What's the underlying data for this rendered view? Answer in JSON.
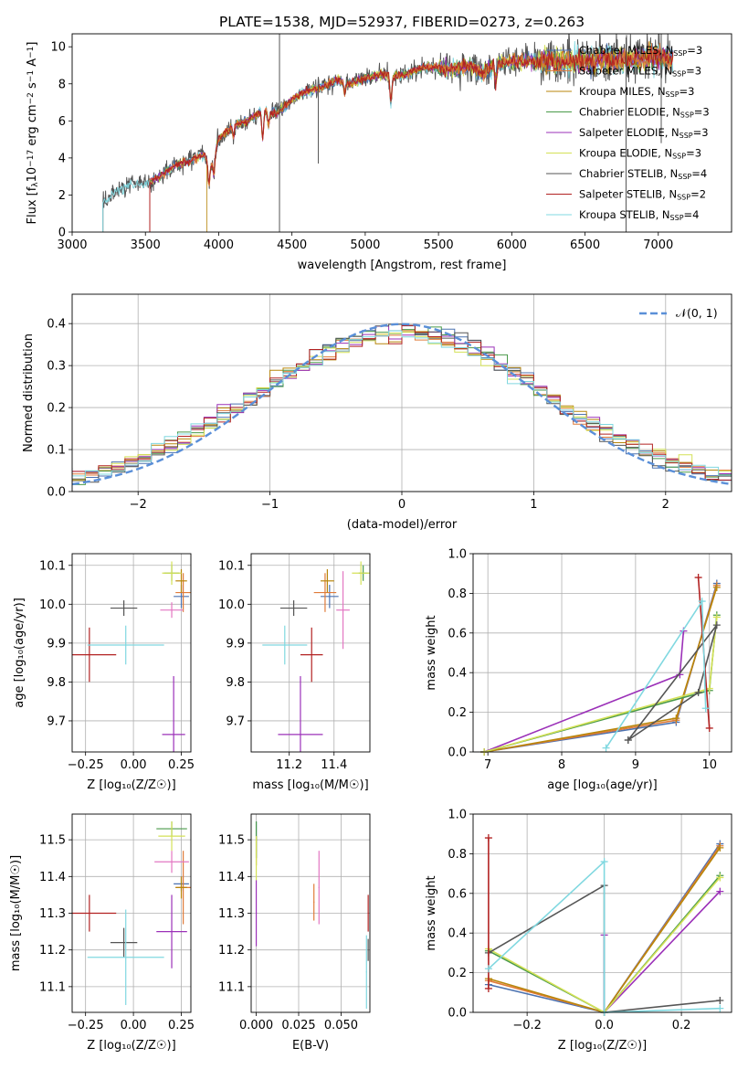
{
  "figure": {
    "title": "PLATE=1538, MJD=52937, FIBERID=0273, z=0.263"
  },
  "colors": {
    "chabrier_miles": "#4c72b0",
    "salpeter_miles": "#e07b39",
    "kroupa_miles": "#b8860b",
    "chabrier_elodie": "#4a9a4a",
    "salpeter_elodie": "#9b30b8",
    "kroupa_elodie": "#d4e157",
    "chabrier_stelib": "#555555",
    "salpeter_stelib": "#b22222",
    "kroupa_stelib": "#80d8e0",
    "normal_curve": "#5a8fd8",
    "grid": "#b0b0b0"
  },
  "chart_data": [
    {
      "id": "spectrum",
      "type": "line",
      "title": "PLATE=1538, MJD=52937, FIBERID=0273, z=0.263",
      "xlabel": "wavelength [Angstrom, rest frame]",
      "ylabel": "Flux [f$_\\lambda$10$^{-17}$ erg cm$^{-2}$ s$^{-1}$ A$^{-1}$]",
      "ylabel_parts": [
        "Flux [f",
        "λ",
        "10",
        "−17",
        " erg cm",
        "−2",
        " s",
        "−1",
        " A",
        "−1",
        "]"
      ],
      "xlim": [
        3000,
        7500
      ],
      "ylim": [
        0,
        10.7
      ],
      "xticks": [
        3000,
        3500,
        4000,
        4500,
        5000,
        5500,
        6000,
        6500,
        7000
      ],
      "yticks": [
        0,
        2,
        4,
        6,
        8,
        10
      ],
      "grid": false,
      "legend_position": "top-right",
      "legend": [
        {
          "name": "Chabrier MILES, N",
          "sub": "SSP",
          "tail": "=3"
        },
        {
          "name": "Salpeter MILES, N",
          "sub": "SSP",
          "tail": "=3"
        },
        {
          "name": "Kroupa MILES, N",
          "sub": "SSP",
          "tail": "=3"
        },
        {
          "name": "Chabrier ELODIE, N",
          "sub": "SSP",
          "tail": "=3"
        },
        {
          "name": "Salpeter ELODIE, N",
          "sub": "SSP",
          "tail": "=3"
        },
        {
          "name": "Kroupa ELODIE, N",
          "sub": "SSP",
          "tail": "=3"
        },
        {
          "name": "Chabrier STELIB, N",
          "sub": "SSP",
          "tail": "=4"
        },
        {
          "name": "Salpeter STELIB, N",
          "sub": "SSP",
          "tail": "=2"
        },
        {
          "name": "Kroupa STELIB, N",
          "sub": "SSP",
          "tail": "=4"
        }
      ],
      "continuum": {
        "x": [
          3210,
          3300,
          3400,
          3500,
          3600,
          3700,
          3800,
          3900,
          3950,
          4000,
          4100,
          4200,
          4300,
          4400,
          4500,
          4600,
          4700,
          4800,
          4900,
          5000,
          5100,
          5200,
          5300,
          5400,
          5500,
          5600,
          5700,
          5800,
          5900,
          6000,
          6200,
          6400,
          6600,
          6800,
          7000,
          7100
        ],
        "y": [
          1.6,
          2.2,
          2.6,
          2.6,
          3.0,
          3.6,
          3.8,
          4.2,
          3.6,
          5.0,
          5.8,
          6.0,
          6.6,
          6.4,
          7.2,
          7.6,
          7.8,
          8.2,
          8.0,
          8.3,
          8.5,
          8.4,
          8.6,
          8.9,
          8.9,
          8.8,
          9.0,
          8.6,
          9.1,
          9.2,
          9.2,
          9.2,
          9.3,
          9.3,
          9.5,
          9.3
        ]
      },
      "dips": [
        {
          "x": 3933,
          "depth": 1.2
        },
        {
          "x": 3968,
          "depth": 1.0
        },
        {
          "x": 4101,
          "depth": 0.7
        },
        {
          "x": 4300,
          "depth": 1.5
        },
        {
          "x": 4340,
          "depth": 0.8
        },
        {
          "x": 4861,
          "depth": 0.6
        },
        {
          "x": 5175,
          "depth": 1.4
        },
        {
          "x": 5890,
          "depth": 1.0
        },
        {
          "x": 6563,
          "depth": 0.4
        }
      ],
      "data_start": {
        "stelib": 3210,
        "miles": 3530,
        "kroupa_miles": 3920
      },
      "notes_spikes": [
        {
          "x": 4415,
          "y0": 0,
          "y1": 11.5
        },
        {
          "x": 6780,
          "y0": 0,
          "y1": 10.5
        },
        {
          "x": 4680,
          "y0": 3.7,
          "y1": 8.0
        },
        {
          "x": 7020,
          "y0": 4.8,
          "y1": 10.7
        }
      ]
    },
    {
      "id": "residuals",
      "type": "histogram",
      "xlabel": "(data-model)/error",
      "ylabel": "Normed distribution",
      "xlim": [
        -2.5,
        2.5
      ],
      "ylim": [
        0,
        0.47
      ],
      "xticks": [
        -2,
        -1,
        0,
        1,
        2
      ],
      "yticks": [
        0.0,
        0.1,
        0.2,
        0.3,
        0.4
      ],
      "grid": true,
      "bin_width": 0.1,
      "legend_position": "top-right",
      "legend": [
        {
          "name": "𝒩(0, 1)"
        }
      ],
      "normal_curve": {
        "mean": 0,
        "sigma": 1,
        "style": "dashed"
      }
    },
    {
      "id": "age_vs_Z",
      "type": "errorbar",
      "xlabel": "Z [log₁₀(Z/Z☉)]",
      "ylabel": "age  [log₁₀(age/yr)]",
      "xlim": [
        -0.32,
        0.3
      ],
      "ylim": [
        9.62,
        10.13
      ],
      "xticks": [
        -0.25,
        0.0,
        0.25
      ],
      "xtick_labels": [
        "−0.25",
        "0.00",
        "0.25"
      ],
      "yticks": [
        9.7,
        9.8,
        9.9,
        10.0,
        10.1
      ],
      "grid": true,
      "points": [
        {
          "model": "chabrier_miles",
          "x": 0.25,
          "y": 10.02,
          "xerr": 0.04,
          "yerr": 0.03
        },
        {
          "model": "salpeter_miles",
          "x": 0.26,
          "y": 10.03,
          "xerr": 0.04,
          "yerr": 0.05
        },
        {
          "model": "kroupa_miles",
          "x": 0.25,
          "y": 10.06,
          "xerr": 0.03,
          "yerr": 0.03
        },
        {
          "model": "chabrier_elodie",
          "x": 0.2,
          "y": 10.08,
          "xerr": 0.04,
          "yerr": 0.02
        },
        {
          "model": "salpeter_elodie",
          "x": 0.21,
          "y": 9.665,
          "xerr": 0.06,
          "yerr": 0.15
        },
        {
          "model": "kroupa_elodie",
          "x": 0.2,
          "y": 10.08,
          "xerr": 0.05,
          "yerr": 0.03
        },
        {
          "model": "chabrier_stelib",
          "x": -0.05,
          "y": 9.99,
          "xerr": 0.07,
          "yerr": 0.02
        },
        {
          "model": "salpeter_stelib",
          "x": -0.23,
          "y": 9.87,
          "xerr": 0.14,
          "yerr": 0.07
        },
        {
          "model": "kroupa_stelib",
          "x": -0.04,
          "y": 9.895,
          "xerr": 0.2,
          "yerr": 0.05
        },
        {
          "model": "kroupa_miles_pink",
          "x": 0.2,
          "y": 9.985,
          "xerr": 0.06,
          "yerr": 0.02
        }
      ]
    },
    {
      "id": "age_vs_mass",
      "type": "errorbar",
      "xlabel": "mass [log₁₀(M/M☉)]",
      "ylabel": "",
      "xlim": [
        11.03,
        11.56
      ],
      "ylim": [
        9.62,
        10.13
      ],
      "xticks": [
        11.2,
        11.4
      ],
      "xtick_labels": [
        "11.2",
        "11.4"
      ],
      "yticks": [
        9.7,
        9.8,
        9.9,
        10.0,
        10.1
      ],
      "grid": true,
      "points": [
        {
          "model": "chabrier_miles",
          "x": 11.38,
          "y": 10.02,
          "xerr": 0.04,
          "yerr": 0.03
        },
        {
          "model": "salpeter_miles",
          "x": 11.36,
          "y": 10.03,
          "xerr": 0.05,
          "yerr": 0.05
        },
        {
          "model": "kroupa_miles",
          "x": 11.37,
          "y": 10.06,
          "xerr": 0.03,
          "yerr": 0.03
        },
        {
          "model": "chabrier_elodie",
          "x": 11.53,
          "y": 10.08,
          "xerr": 0.02,
          "yerr": 0.02
        },
        {
          "model": "salpeter_elodie",
          "x": 11.25,
          "y": 9.665,
          "xerr": 0.1,
          "yerr": 0.15
        },
        {
          "model": "kroupa_elodie",
          "x": 11.52,
          "y": 10.08,
          "xerr": 0.04,
          "yerr": 0.03
        },
        {
          "model": "chabrier_stelib",
          "x": 11.22,
          "y": 9.99,
          "xerr": 0.06,
          "yerr": 0.02
        },
        {
          "model": "salpeter_stelib",
          "x": 11.3,
          "y": 9.87,
          "xerr": 0.05,
          "yerr": 0.07
        },
        {
          "model": "kroupa_stelib",
          "x": 11.18,
          "y": 9.895,
          "xerr": 0.1,
          "yerr": 0.05
        },
        {
          "model": "kroupa_miles_pink",
          "x": 11.44,
          "y": 9.985,
          "xerr": 0.03,
          "yerr": 0.1
        }
      ]
    },
    {
      "id": "mass_weight_vs_age",
      "type": "line",
      "xlabel": "age  [log₁₀(age/yr)]",
      "ylabel": "mass weight",
      "xlim": [
        6.8,
        10.3
      ],
      "ylim": [
        0,
        1.0
      ],
      "xticks": [
        7,
        8,
        9,
        10
      ],
      "yticks": [
        0.0,
        0.2,
        0.4,
        0.6,
        0.8,
        1.0
      ],
      "grid": true,
      "series": [
        {
          "model": "chabrier_miles",
          "x": [
            6.95,
            9.55,
            10.1
          ],
          "y": [
            0.0,
            0.15,
            0.85
          ]
        },
        {
          "model": "salpeter_miles",
          "x": [
            6.95,
            9.55,
            10.1
          ],
          "y": [
            0.0,
            0.16,
            0.84
          ]
        },
        {
          "model": "kroupa_miles",
          "x": [
            6.95,
            9.55,
            10.1
          ],
          "y": [
            0.0,
            0.17,
            0.83
          ]
        },
        {
          "model": "chabrier_elodie",
          "x": [
            6.95,
            10.0,
            10.1
          ],
          "y": [
            0.0,
            0.31,
            0.69
          ]
        },
        {
          "model": "salpeter_elodie",
          "x": [
            6.95,
            9.6,
            9.65
          ],
          "y": [
            0.0,
            0.39,
            0.61
          ]
        },
        {
          "model": "kroupa_elodie",
          "x": [
            6.95,
            10.0,
            10.1
          ],
          "y": [
            0.0,
            0.32,
            0.68
          ]
        },
        {
          "model": "chabrier_stelib",
          "x": [
            8.9,
            9.85,
            10.1,
            8.9
          ],
          "y": [
            0.06,
            0.3,
            0.64,
            0.06
          ]
        },
        {
          "model": "salpeter_stelib",
          "x": [
            9.85,
            10.0
          ],
          "y": [
            0.88,
            0.12
          ]
        },
        {
          "model": "kroupa_stelib",
          "x": [
            8.6,
            9.9,
            9.95
          ],
          "y": [
            0.02,
            0.76,
            0.22
          ]
        }
      ]
    },
    {
      "id": "mass_vs_Z",
      "type": "errorbar",
      "xlabel": "Z [log₁₀(Z/Z☉)]",
      "ylabel": "mass [log₁₀(M/M☉)]",
      "xlim": [
        -0.32,
        0.3
      ],
      "ylim": [
        11.03,
        11.57
      ],
      "xticks": [
        -0.25,
        0.0,
        0.25
      ],
      "xtick_labels": [
        "−0.25",
        "0.00",
        "0.25"
      ],
      "yticks": [
        11.1,
        11.2,
        11.3,
        11.4,
        11.5
      ],
      "grid": true,
      "points": [
        {
          "model": "chabrier_miles",
          "x": 0.25,
          "y": 11.38,
          "xerr": 0.04,
          "yerr": 0.02
        },
        {
          "model": "salpeter_miles",
          "x": 0.26,
          "y": 11.37,
          "xerr": 0.04,
          "yerr": 0.1
        },
        {
          "model": "kroupa_miles",
          "x": 0.25,
          "y": 11.37,
          "xerr": 0.03,
          "yerr": 0.03
        },
        {
          "model": "chabrier_elodie",
          "x": 0.2,
          "y": 11.53,
          "xerr": 0.08,
          "yerr": 0.02
        },
        {
          "model": "salpeter_elodie",
          "x": 0.2,
          "y": 11.25,
          "xerr": 0.08,
          "yerr": 0.1
        },
        {
          "model": "kroupa_elodie",
          "x": 0.2,
          "y": 11.51,
          "xerr": 0.07,
          "yerr": 0.04
        },
        {
          "model": "chabrier_stelib",
          "x": -0.05,
          "y": 11.22,
          "xerr": 0.07,
          "yerr": 0.04
        },
        {
          "model": "salpeter_stelib",
          "x": -0.23,
          "y": 11.3,
          "xerr": 0.14,
          "yerr": 0.05
        },
        {
          "model": "kroupa_stelib",
          "x": -0.04,
          "y": 11.18,
          "xerr": 0.2,
          "yerr": 0.13
        },
        {
          "model": "kroupa_miles_pink",
          "x": 0.2,
          "y": 11.44,
          "xerr": 0.09,
          "yerr": 0.03
        }
      ]
    },
    {
      "id": "mass_vs_ebv",
      "type": "errorbar",
      "xlabel": "E(B-V)",
      "ylabel": "",
      "xlim": [
        -0.003,
        0.067
      ],
      "ylim": [
        11.03,
        11.57
      ],
      "xticks": [
        0.0,
        0.025,
        0.05
      ],
      "xtick_labels": [
        "0.000",
        "0.025",
        "0.050"
      ],
      "yticks": [
        11.1,
        11.2,
        11.3,
        11.4,
        11.5
      ],
      "grid": true,
      "points": [
        {
          "model": "chabrier_miles",
          "x": 0.0,
          "y": 11.5,
          "xerr": 0.0003,
          "yerr": 0.05
        },
        {
          "model": "salpeter_miles",
          "x": 0.034,
          "y": 11.33,
          "xerr": 0.0003,
          "yerr": 0.05
        },
        {
          "model": "kroupa_miles",
          "x": 0.0,
          "y": 11.47,
          "xerr": 0.0003,
          "yerr": 0.04
        },
        {
          "model": "chabrier_elodie",
          "x": 0.0,
          "y": 11.5,
          "xerr": 0.0003,
          "yerr": 0.05
        },
        {
          "model": "salpeter_elodie",
          "x": 0.0,
          "y": 11.3,
          "xerr": 0.0003,
          "yerr": 0.09
        },
        {
          "model": "kroupa_elodie",
          "x": 0.0,
          "y": 11.45,
          "xerr": 0.0003,
          "yerr": 0.06
        },
        {
          "model": "chabrier_stelib",
          "x": 0.066,
          "y": 11.2,
          "xerr": 0.0003,
          "yerr": 0.03
        },
        {
          "model": "salpeter_stelib",
          "x": 0.066,
          "y": 11.3,
          "xerr": 0.0003,
          "yerr": 0.05
        },
        {
          "model": "kroupa_stelib",
          "x": 0.065,
          "y": 11.14,
          "xerr": 0.0003,
          "yerr": 0.1
        },
        {
          "model": "kroupa_miles_pink",
          "x": 0.037,
          "y": 11.37,
          "xerr": 0.0003,
          "yerr": 0.1
        }
      ]
    },
    {
      "id": "mass_weight_vs_Z",
      "type": "line",
      "xlabel": "Z [log₁₀(Z/Z☉)]",
      "ylabel": "mass weight",
      "xlim": [
        -0.34,
        0.33
      ],
      "ylim": [
        0,
        1.0
      ],
      "xticks": [
        -0.2,
        0.0,
        0.2
      ],
      "xtick_labels": [
        "−0.2",
        "0.0",
        "0.2"
      ],
      "yticks": [
        0.0,
        0.2,
        0.4,
        0.6,
        0.8,
        1.0
      ],
      "grid": true,
      "series": [
        {
          "model": "chabrier_miles",
          "x": [
            -0.3,
            0.0,
            0.3
          ],
          "y": [
            0.14,
            0.0,
            0.85
          ]
        },
        {
          "model": "salpeter_miles",
          "x": [
            -0.3,
            0.0,
            0.3
          ],
          "y": [
            0.16,
            0.0,
            0.84
          ]
        },
        {
          "model": "kroupa_miles",
          "x": [
            -0.3,
            0.0,
            0.3
          ],
          "y": [
            0.17,
            0.0,
            0.83
          ]
        },
        {
          "model": "chabrier_elodie",
          "x": [
            -0.3,
            0.0,
            0.3
          ],
          "y": [
            0.31,
            0.0,
            0.69
          ]
        },
        {
          "model": "salpeter_elodie",
          "x": [
            0.0,
            0.0,
            0.3
          ],
          "y": [
            0.39,
            0.0,
            0.61
          ]
        },
        {
          "model": "kroupa_elodie",
          "x": [
            -0.3,
            0.0,
            0.3
          ],
          "y": [
            0.32,
            0.0,
            0.68
          ]
        },
        {
          "model": "chabrier_stelib",
          "x": [
            -0.3,
            0.0,
            0.0,
            0.3
          ],
          "y": [
            0.3,
            0.64,
            0.0,
            0.06
          ]
        },
        {
          "model": "salpeter_stelib",
          "x": [
            -0.3,
            -0.3
          ],
          "y": [
            0.12,
            0.88
          ]
        },
        {
          "model": "kroupa_stelib",
          "x": [
            -0.3,
            0.0,
            0.0,
            0.3
          ],
          "y": [
            0.22,
            0.76,
            0.0,
            0.02
          ]
        }
      ]
    }
  ]
}
